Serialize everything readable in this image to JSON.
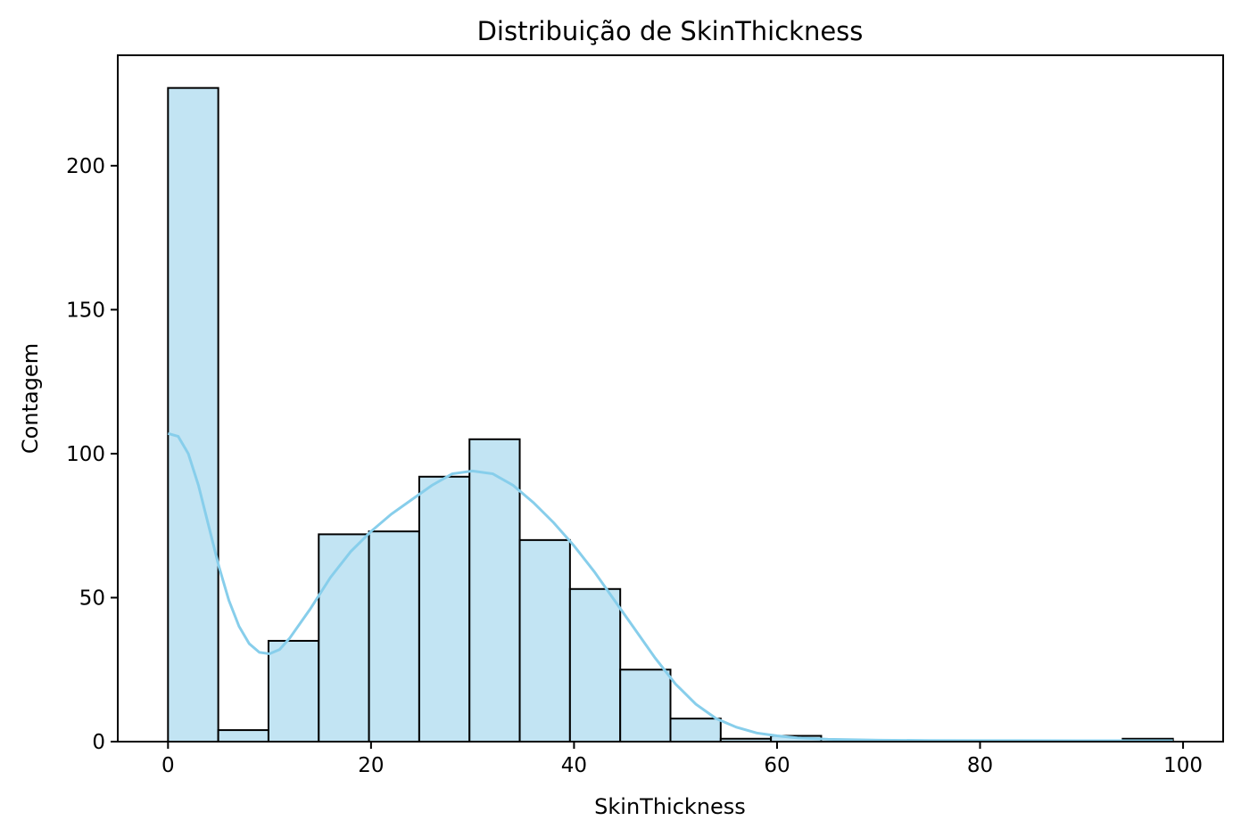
{
  "chart_data": {
    "type": "bar",
    "title": "Distribuição de SkinThickness",
    "xlabel": "SkinThickness",
    "ylabel": "Contagem",
    "xlim": [
      -4.95,
      103.95
    ],
    "ylim": [
      0,
      238.35
    ],
    "xticks": [
      "0",
      "20",
      "40",
      "60",
      "80",
      "100"
    ],
    "yticks": [
      "0",
      "50",
      "100",
      "150",
      "200"
    ],
    "bin_edges": [
      0,
      4.95,
      9.9,
      14.85,
      19.8,
      24.75,
      29.7,
      34.65,
      39.6,
      44.55,
      49.5,
      54.45,
      59.4,
      64.35,
      69.3,
      74.25,
      79.2,
      84.15,
      89.1,
      94.05,
      99
    ],
    "counts": [
      227,
      4,
      35,
      72,
      73,
      92,
      105,
      70,
      53,
      25,
      8,
      1,
      2,
      0,
      0,
      0,
      0,
      0,
      0,
      1
    ],
    "kde": {
      "x": [
        0,
        1,
        2,
        3,
        4,
        5,
        6,
        7,
        8,
        9,
        10,
        11,
        12,
        14,
        16,
        18,
        20,
        22,
        24,
        26,
        28,
        30,
        32,
        34,
        36,
        38,
        40,
        42,
        44,
        46,
        48,
        50,
        52,
        54,
        56,
        58,
        60,
        62,
        65,
        70,
        75,
        80,
        90,
        99
      ],
      "y": [
        107,
        106,
        100,
        89,
        75,
        61,
        49,
        40,
        34,
        31,
        30.5,
        32,
        36,
        46,
        57,
        66,
        73,
        79,
        84,
        89,
        93,
        94,
        93,
        89,
        83,
        76,
        68,
        59,
        49,
        39,
        29,
        20,
        13,
        8,
        5,
        3,
        2,
        1.3,
        0.8,
        0.5,
        0.4,
        0.35,
        0.3,
        0.3
      ]
    },
    "colors": {
      "bar_fill": "#c2e4f3",
      "bar_edge": "#000000",
      "kde_line": "#87ceeb"
    },
    "grid": false,
    "legend": "none"
  }
}
